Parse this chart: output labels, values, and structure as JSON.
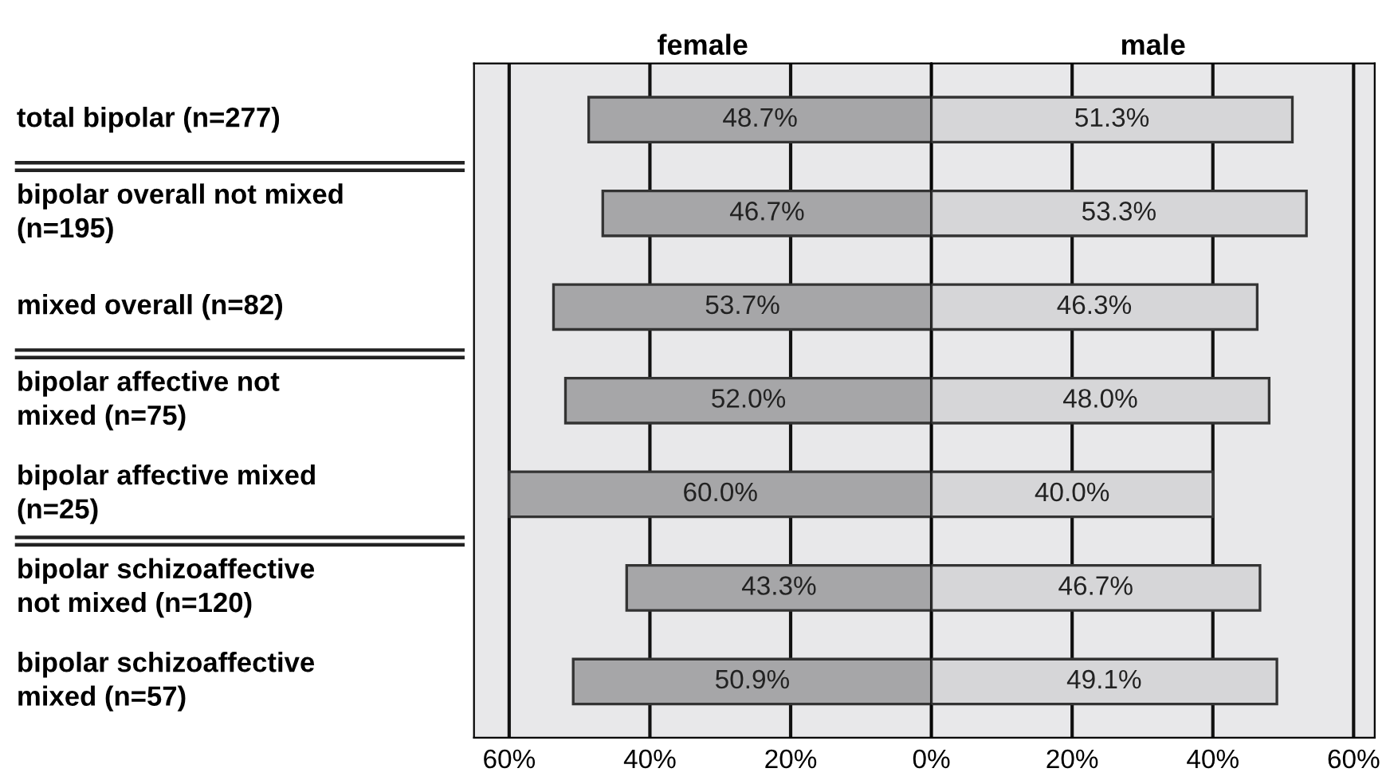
{
  "chart_data": [
    {
      "type": "bar",
      "orientation": "horizontal",
      "title": "female",
      "categories": [
        "total bipolar (n=277)",
        "bipolar overall not mixed\n(n=195)",
        "mixed overall (n=82)",
        "bipolar affective not\nmixed (n=75)",
        "bipolar affective mixed\n(n=25)",
        "bipolar schizoaffective\nnot mixed (n=120)",
        "bipolar schizoaffective\nmixed (n=57)"
      ],
      "series": [
        {
          "color": "#a6a6a8",
          "values": [
            48.7,
            46.7,
            53.7,
            52.0,
            60.0,
            43.3,
            50.9
          ],
          "value_labels": [
            "48.7%",
            "46.7%",
            "53.7%",
            "52.0%",
            "60.0%",
            "43.3%",
            "50.9%"
          ]
        }
      ],
      "xlim": [
        65,
        0
      ],
      "xticks": [
        {
          "value": 60,
          "label": "60%"
        },
        {
          "value": 40,
          "label": "40%"
        },
        {
          "value": 20,
          "label": "20%"
        },
        {
          "value": 0,
          "label": null
        }
      ],
      "grid": "x",
      "legend": false
    },
    {
      "type": "bar",
      "orientation": "horizontal",
      "title": "male",
      "tick_labels": "x",
      "categories": [
        null,
        null,
        null,
        null,
        null,
        null,
        null
      ],
      "series": [
        {
          "color": "#d6d6d8",
          "values": [
            51.3,
            53.3,
            46.3,
            48.0,
            40.0,
            46.7,
            49.1
          ],
          "value_labels": [
            "51.3%",
            "53.3%",
            "46.3%",
            "48.0%",
            "40.0%",
            "46.7%",
            "49.1%"
          ]
        }
      ],
      "xlim": [
        0,
        63
      ],
      "xticks": [
        {
          "value": 0,
          "label": "0%"
        },
        {
          "value": 20,
          "label": "20%"
        },
        {
          "value": 40,
          "label": "40%"
        },
        {
          "value": 60,
          "label": "60%"
        }
      ],
      "grid": "x",
      "legend": false
    }
  ]
}
